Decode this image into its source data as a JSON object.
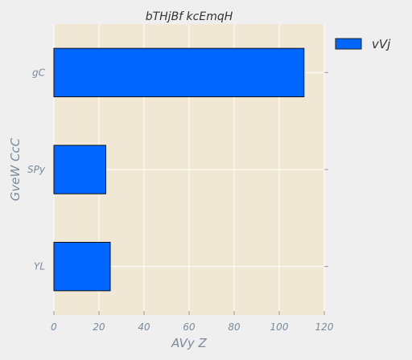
{
  "chart_data": {
    "type": "bar",
    "orientation": "horizontal",
    "title": "bTHjBf kcEmqH",
    "xlabel": "AVy Z",
    "ylabel": "GveW CcC",
    "categories": [
      "gC",
      "SPy",
      "YL"
    ],
    "series": [
      {
        "name": "vVj",
        "values": [
          111,
          23,
          25
        ]
      }
    ],
    "xlim": [
      0,
      120
    ],
    "xticks": [
      "0",
      "20",
      "40",
      "60",
      "80",
      "100",
      "120"
    ],
    "grid": true,
    "legend_position": "top-right (outside plot)",
    "colors": {
      "bar": "#0066ff",
      "plot_background": "#f0e8d5",
      "figure_background": "#efefef",
      "grid": "#ffffff",
      "text": "#555566",
      "tick_text": "#7a8a9a"
    }
  }
}
